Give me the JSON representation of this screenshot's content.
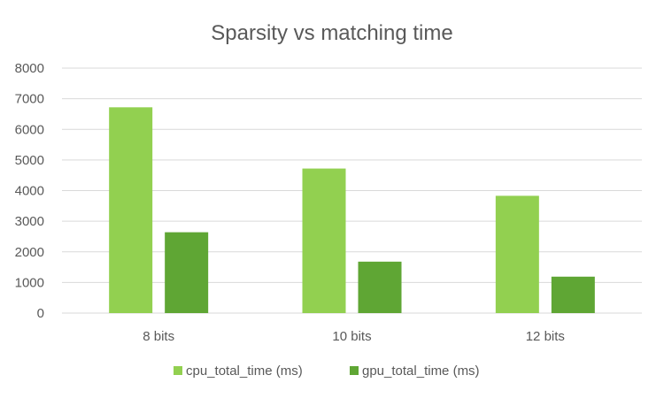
{
  "chart_data": {
    "type": "bar",
    "title": "Sparsity vs matching time",
    "xlabel": "",
    "ylabel": "",
    "categories": [
      "8 bits",
      "10 bits",
      "12 bits"
    ],
    "series": [
      {
        "name": "cpu_total_time (ms)",
        "color": "#92d050",
        "values": [
          6720,
          4720,
          3830
        ]
      },
      {
        "name": "gpu_total_time (ms)",
        "color": "#5fa634",
        "values": [
          2640,
          1680,
          1190
        ]
      }
    ],
    "ylim": [
      0,
      8000
    ],
    "yticks": [
      0,
      1000,
      2000,
      3000,
      4000,
      5000,
      6000,
      7000,
      8000
    ],
    "grid": true,
    "legend_position": "bottom"
  }
}
